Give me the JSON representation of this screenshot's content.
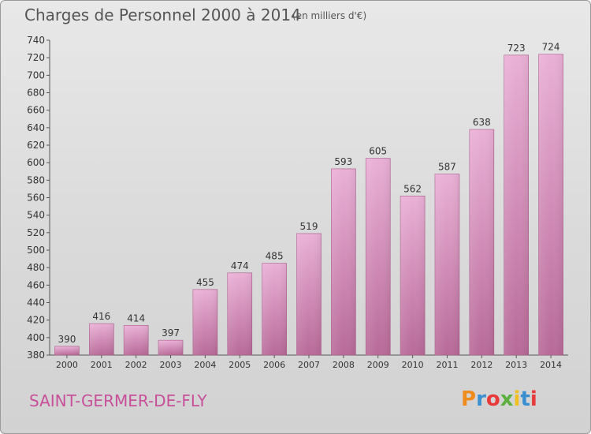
{
  "header": {
    "title": "Charges de Personnel 2000 à 2014",
    "subtitle": "(en milliers d'€)"
  },
  "footer": {
    "commune": "SAINT-GERMER-DE-FLY",
    "logo_text": "Proxiti",
    "logo_colors": [
      "#f08c1e",
      "#3a8fd0",
      "#e83a3a",
      "#5cb040",
      "#f0c020",
      "#3a8fd0",
      "#e83a3a"
    ]
  },
  "colors": {
    "bar_light": "#eab0d6",
    "bar_dark": "#c0709e",
    "bar_edge": "#a85a8a",
    "commune_text": "#c8509a"
  },
  "chart_data": {
    "type": "bar",
    "title": "Charges de Personnel 2000 à 2014",
    "subtitle": "(en milliers d'€)",
    "categories": [
      "2000",
      "2001",
      "2002",
      "2003",
      "2004",
      "2005",
      "2006",
      "2007",
      "2008",
      "2009",
      "2010",
      "2011",
      "2012",
      "2013",
      "2014"
    ],
    "values": [
      390,
      416,
      414,
      397,
      455,
      474,
      485,
      519,
      593,
      605,
      562,
      587,
      638,
      723,
      724
    ],
    "ylim": [
      380,
      740
    ],
    "yticks": [
      380,
      400,
      420,
      440,
      460,
      480,
      500,
      520,
      540,
      560,
      580,
      600,
      620,
      640,
      660,
      680,
      700,
      720,
      740
    ],
    "grid": false,
    "data_labels": true
  }
}
